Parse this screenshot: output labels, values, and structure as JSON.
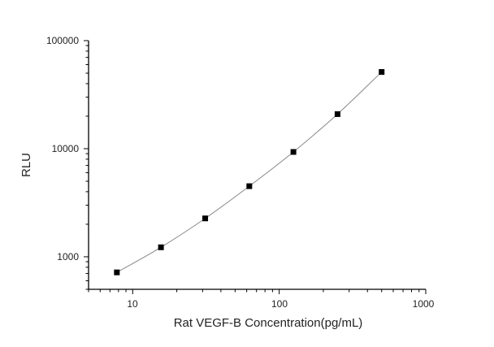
{
  "chart_data": {
    "type": "line",
    "title": "",
    "xlabel": "Rat VEGF-B Concentration(pg/mL)",
    "ylabel": "RLU",
    "xscale": "log",
    "yscale": "log",
    "xlim": [
      5,
      1000
    ],
    "ylim": [
      500,
      100000
    ],
    "xticks": [
      "10",
      "100",
      "1000"
    ],
    "yticks": [
      "1000",
      "10000",
      "100000"
    ],
    "grid": false,
    "legend": "none",
    "marker": "square",
    "colors": {
      "marker": "#000000",
      "line": "#888888",
      "axis": "#000000"
    },
    "series": [
      {
        "x": [
          7.8,
          15.6,
          31.25,
          62.5,
          125,
          250,
          500
        ],
        "y": [
          717,
          1224,
          2265,
          4500,
          9330,
          20900,
          51300
        ]
      }
    ]
  }
}
